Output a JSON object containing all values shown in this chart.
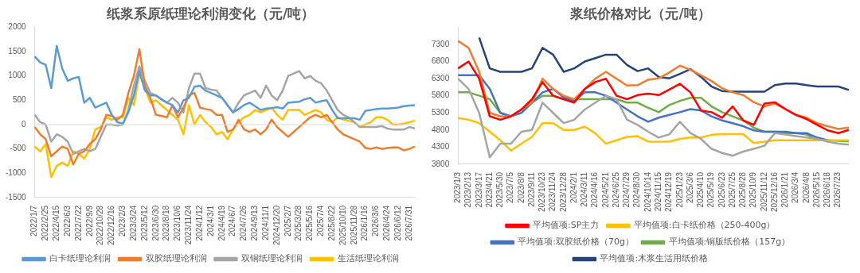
{
  "chart_data": [
    {
      "type": "line",
      "title": "纸浆系原纸理论利润变化（元/吨）",
      "categories": [
        "2022/1/7",
        null,
        "2022/2/25",
        null,
        "2022/4/15",
        null,
        "2022/6/3",
        null,
        "2022/7/22",
        null,
        "2022/9/9",
        null,
        "2022/10/28",
        null,
        "2022/12/16",
        null,
        "2023/2/3",
        null,
        "2023/3/24",
        null,
        "2023/5/12",
        null,
        "2023/6/30",
        null,
        "2023/8/18",
        null,
        "2023/10/6",
        null,
        "2023/11/24",
        null,
        "2024/1/12",
        null,
        "2024/3/1",
        null,
        "2024/4/19",
        null,
        "2024/6/7",
        null,
        "2024/7/26",
        null,
        "2024/9/13",
        null,
        "2024/11/1",
        null,
        "2024/12/20",
        null,
        "2025/2/7",
        null,
        "2025/3/28",
        null,
        "2025/5/16",
        null,
        "2025/7/4",
        null,
        "2025/8/22",
        null,
        "2025/10/10",
        null,
        "2025/11/28",
        null,
        "2026/1/16",
        null,
        "2026/3/6",
        null,
        "2026/4/24",
        null,
        "2026/6/12",
        null,
        "2026/7/31",
        null
      ],
      "series": [
        {
          "name": "白卡纸理论利润",
          "color": "#5b9bd5",
          "values": [
            1400,
            1280,
            1230,
            750,
            1620,
            1150,
            900,
            950,
            980,
            450,
            550,
            350,
            400,
            450,
            200,
            50,
            20,
            250,
            600,
            1100,
            700,
            600,
            600,
            520,
            450,
            400,
            250,
            500,
            550,
            780,
            800,
            700,
            650,
            600,
            550,
            400,
            250,
            320,
            400,
            450,
            380,
            300,
            330,
            340,
            360,
            330,
            450,
            460,
            470,
            520,
            550,
            450,
            480,
            500,
            300,
            130,
            130,
            130,
            130,
            100,
            280,
            300,
            320,
            330,
            330,
            340,
            350,
            380,
            390,
            400
          ]
        },
        {
          "name": "双胶纸理论利润",
          "color": "#ed7d31",
          "values": [
            -50,
            -200,
            -300,
            -650,
            -550,
            -450,
            -500,
            -820,
            -600,
            -550,
            -400,
            -300,
            -100,
            200,
            180,
            100,
            200,
            650,
            1000,
            1550,
            800,
            550,
            200,
            180,
            150,
            400,
            150,
            350,
            600,
            650,
            350,
            320,
            300,
            200,
            200,
            -150,
            -100,
            100,
            -100,
            -150,
            -100,
            -200,
            -100,
            100,
            -50,
            -150,
            -250,
            -150,
            -50,
            50,
            150,
            200,
            150,
            200,
            50,
            -100,
            -200,
            -250,
            -300,
            -350,
            -480,
            -500,
            -470,
            -500,
            -480,
            -470,
            -470,
            -530,
            -500,
            -450
          ]
        },
        {
          "name": "双铜纸理论利润",
          "color": "#a5a5a5",
          "values": [
            200,
            50,
            0,
            -350,
            -200,
            -250,
            -350,
            -600,
            -550,
            -500,
            -550,
            -500,
            -250,
            0,
            0,
            -20,
            0,
            300,
            800,
            1200,
            900,
            650,
            600,
            520,
            450,
            550,
            450,
            250,
            750,
            1050,
            1050,
            750,
            720,
            700,
            550,
            400,
            250,
            450,
            600,
            650,
            700,
            550,
            800,
            600,
            500,
            700,
            1000,
            1050,
            1100,
            950,
            1000,
            900,
            850,
            700,
            500,
            300,
            200,
            150,
            50,
            -50,
            -50,
            -50,
            -50,
            -30,
            -80,
            -100,
            -100,
            -100,
            -50,
            -80
          ]
        },
        {
          "name": "生活纸理论利润",
          "color": "#ffc000",
          "values": [
            -450,
            -550,
            -400,
            -1080,
            -850,
            -780,
            -850,
            -550,
            -600,
            -700,
            -500,
            -100,
            -50,
            150,
            100,
            150,
            150,
            550,
            400,
            1050,
            750,
            450,
            500,
            400,
            300,
            200,
            100,
            -200,
            400,
            0,
            200,
            50,
            -50,
            -200,
            -150,
            -300,
            -100,
            50,
            150,
            200,
            300,
            250,
            300,
            350,
            200,
            100,
            300,
            300,
            300,
            200,
            250,
            300,
            250,
            100,
            50,
            150,
            100,
            80,
            50,
            -50,
            0,
            50,
            150,
            150,
            100,
            0,
            0,
            20,
            50,
            80
          ]
        }
      ],
      "ylim": [
        -1500,
        2000
      ],
      "yticks": [
        -1500,
        -1000,
        -500,
        0,
        500,
        1000,
        1500,
        2000
      ],
      "grid": false,
      "legend": "bottom",
      "marker": "none",
      "ref_lines": [
        {
          "axis": "y",
          "value": 0,
          "color": "#d9d9d9"
        }
      ]
    },
    {
      "type": "line",
      "title": "浆纸价格对比（元/吨）",
      "categories": [
        "2023/1/3",
        "2023/2/13",
        "2023/3/17",
        "2023/4/21",
        "2023/5/30",
        "2023/7/5",
        "2023/8/8",
        "2023/9/11",
        "2023/10/23",
        "2023/11/24",
        "2023/12/28",
        "2024/2/1",
        "2024/3/11",
        "2024/4/16",
        "2024/5/21",
        "2024/6/25",
        "2024/7/29",
        "2024/8/30",
        "2024/10/14",
        "2024/11/15",
        "2024/12/19",
        "2025/1/23",
        "2025/3/6",
        "2025/4/10",
        "2025/5/19",
        "2025/6/23",
        "2025/7/25",
        "2025/8/28",
        "2025/10/9",
        "2025/11/12",
        "2025/12/16",
        "2026/1/21",
        "2026/3/4",
        "2026/4/8",
        "2026/5/15",
        "2026/6/18",
        "2026/7/23",
        null
      ],
      "series": [
        {
          "name": "平均值项:SP主力",
          "color": "#ff0000",
          "values": [
            6600,
            6800,
            6300,
            5200,
            5100,
            5200,
            5400,
            5700,
            6200,
            5800,
            5700,
            5600,
            6000,
            6200,
            6300,
            5800,
            5700,
            5820,
            5860,
            5820,
            5980,
            6150,
            5900,
            5370,
            5320,
            5160,
            5490,
            5080,
            4950,
            5570,
            5610,
            5410,
            5240,
            5120,
            4950,
            4790,
            4710,
            4800
          ]
        },
        {
          "color": "#ed7d31",
          "values": [
            7400,
            7200,
            6500,
            5300,
            5200,
            5200,
            5400,
            5600,
            6300,
            6000,
            5800,
            5700,
            6000,
            6300,
            6500,
            6300,
            6100,
            6110,
            6270,
            6310,
            6480,
            6680,
            6560,
            6400,
            6230,
            6020,
            5900,
            5820,
            5610,
            5490,
            5570,
            5410,
            5240,
            5160,
            5000,
            4910,
            4830,
            4870
          ]
        },
        {
          "color": "#a5a5a5",
          "values": [
            6300,
            6000,
            5300,
            4000,
            4400,
            4400,
            4750,
            4800,
            5600,
            5300,
            5000,
            5100,
            5400,
            5600,
            5800,
            5700,
            5100,
            4950,
            4750,
            4580,
            4670,
            5040,
            4710,
            4540,
            4250,
            4130,
            4050,
            4170,
            4250,
            4340,
            4710,
            4670,
            4620,
            4580,
            4540,
            4460,
            4400,
            4370
          ]
        },
        {
          "name": "平均值项:白卡纸价格（250-400g）",
          "color": "#ffc000",
          "values": [
            5150,
            5100,
            5000,
            4750,
            4500,
            4200,
            4400,
            4600,
            5000,
            5000,
            4800,
            4800,
            4900,
            4700,
            4400,
            4500,
            4600,
            4620,
            4460,
            4460,
            4460,
            4540,
            4580,
            4580,
            4660,
            4680,
            4680,
            4680,
            4420,
            4460,
            4500,
            4500,
            4500,
            4500,
            4500,
            4500,
            4500,
            4500
          ]
        },
        {
          "name": "平均值项:双胶纸价格（70g）",
          "color": "#4472c4",
          "values": [
            6400,
            6400,
            6400,
            6000,
            5300,
            5200,
            5300,
            5600,
            5900,
            6000,
            5750,
            5650,
            5900,
            5900,
            5800,
            5600,
            5400,
            5200,
            5040,
            5160,
            5240,
            5320,
            5410,
            5370,
            5200,
            5080,
            5000,
            4910,
            4790,
            4750,
            4750,
            4750,
            4710,
            4710,
            4580,
            4500,
            null,
            null
          ]
        },
        {
          "name": "平均值项:铜版纸价格（157g）",
          "color": "#70ad47",
          "values": [
            5900,
            5900,
            5800,
            5700,
            5300,
            5200,
            5400,
            5600,
            5800,
            5800,
            5700,
            5700,
            5700,
            5700,
            5700,
            5700,
            5600,
            5600,
            5450,
            5320,
            5530,
            5650,
            5740,
            5740,
            5490,
            5320,
            5200,
            5080,
            4870,
            4750,
            4750,
            4710,
            4710,
            4670,
            4500,
            4500,
            4480,
            4470
          ]
        },
        {
          "name": "平均值项:木浆生活用纸价格",
          "color": "#264478",
          "values": [
            null,
            null,
            7500,
            6600,
            6500,
            6500,
            6500,
            6600,
            7200,
            7000,
            6500,
            6600,
            6800,
            6900,
            7000,
            7000,
            6700,
            6520,
            6600,
            6350,
            6310,
            6440,
            6580,
            6350,
            6070,
            5940,
            5920,
            5920,
            5920,
            5920,
            6110,
            6160,
            6160,
            6110,
            6070,
            6070,
            6070,
            5970
          ]
        }
      ],
      "ylim": [
        3800,
        7800
      ],
      "yticks": [
        3800,
        4300,
        4800,
        5300,
        5800,
        6300,
        6800,
        7300
      ],
      "grid": false,
      "legend": "bottom",
      "marker": "none"
    }
  ]
}
